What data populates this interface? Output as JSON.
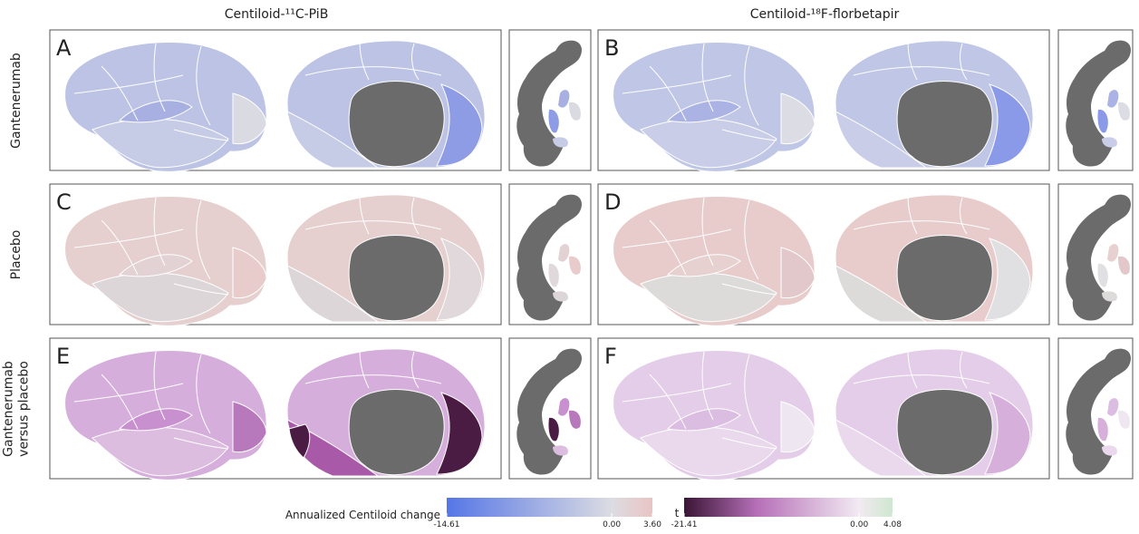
{
  "columns": [
    "Centiloid-¹¹C-PiB",
    "Centiloid-¹⁸F-florbetapir"
  ],
  "rows": [
    [
      "Gantenerumab"
    ],
    [
      "Placebo"
    ],
    [
      "Gantenerumab",
      "versus placebo"
    ]
  ],
  "panels": [
    "A",
    "B",
    "C",
    "D",
    "E",
    "F"
  ],
  "colorbars": [
    {
      "title": "Annualized Centiloid change",
      "ticks": [
        {
          "value": -14.61,
          "label": "-14.61"
        },
        {
          "value": 0,
          "label": "0.00"
        },
        {
          "value": 3.6,
          "label": "3.60"
        }
      ]
    },
    {
      "title": "t",
      "ticks": [
        {
          "value": -21.41,
          "label": "-21.41"
        },
        {
          "value": 0,
          "label": "0.00"
        },
        {
          "value": 4.08,
          "label": "4.08"
        }
      ]
    }
  ]
}
